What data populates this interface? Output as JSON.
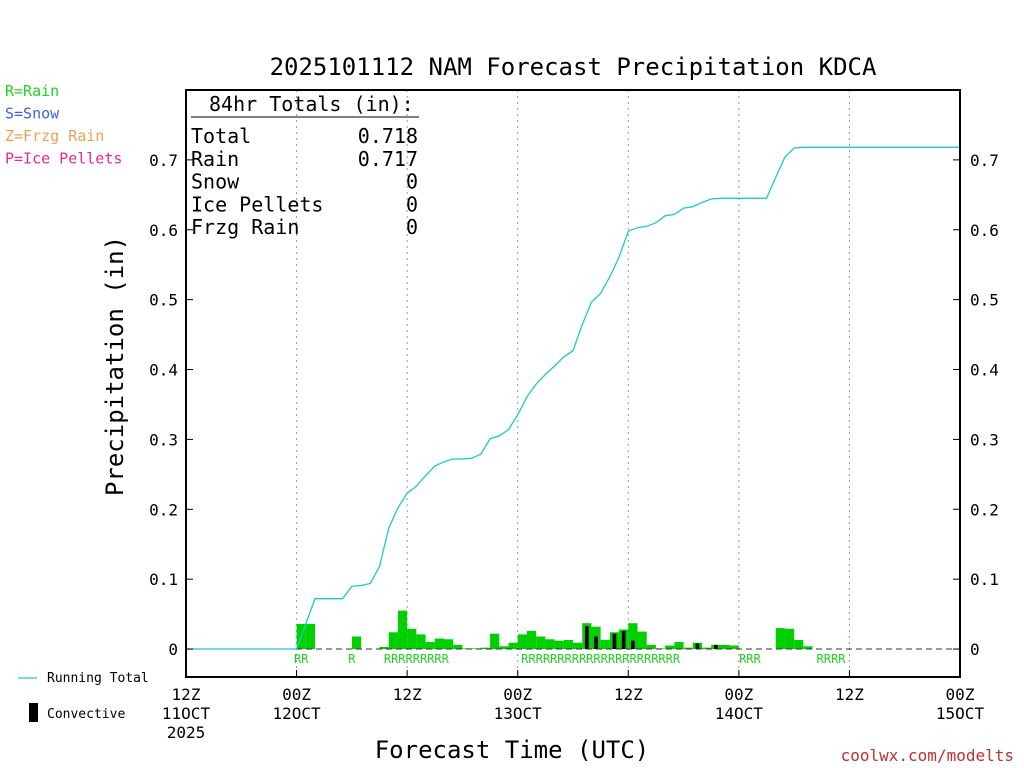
{
  "chart_data": {
    "type": "bar",
    "title": "2025101112 NAM Forecast Precipitation KDCA",
    "xlabel": "Forecast Time (UTC)",
    "ylabel": "Precipitation (in)",
    "ylim": [
      -0.04,
      0.8
    ],
    "xlim_hours": [
      0,
      84
    ],
    "yticks": [
      "0",
      "0.1",
      "0.2",
      "0.3",
      "0.4",
      "0.5",
      "0.6",
      "0.7"
    ],
    "ytick_values": [
      0,
      0.1,
      0.2,
      0.3,
      0.4,
      0.5,
      0.6,
      0.7
    ],
    "xticks": [
      {
        "hour": 0,
        "l1": "12Z",
        "l2": "11OCT",
        "l3": "2025"
      },
      {
        "hour": 12,
        "l1": "00Z",
        "l2": "12OCT"
      },
      {
        "hour": 24,
        "l1": "12Z",
        "l2": ""
      },
      {
        "hour": 36,
        "l1": "00Z",
        "l2": "13OCT"
      },
      {
        "hour": 48,
        "l1": "12Z",
        "l2": ""
      },
      {
        "hour": 60,
        "l1": "00Z",
        "l2": "14OCT"
      },
      {
        "hour": 72,
        "l1": "12Z",
        "l2": ""
      },
      {
        "hour": 84,
        "l1": "00Z",
        "l2": "15OCT"
      }
    ],
    "bar_hours": [
      12,
      13,
      15,
      16,
      17,
      18,
      19,
      20,
      21,
      22,
      23,
      24,
      25,
      26,
      27,
      28,
      29,
      30,
      31,
      32,
      33,
      34,
      35,
      36,
      37,
      38,
      39,
      40,
      41,
      42,
      43,
      44,
      45,
      46,
      47,
      48,
      49,
      50,
      51,
      52,
      53,
      54,
      55,
      56,
      57,
      58,
      59,
      60,
      63,
      64,
      65,
      66,
      67,
      68,
      69,
      70,
      71,
      72,
      73
    ],
    "series": [
      {
        "name": "Precipitation",
        "values": [
          0.036,
          0.036,
          0.0,
          0.0,
          0.0,
          0.018,
          0.0,
          0.0,
          0.003,
          0.024,
          0.055,
          0.029,
          0.021,
          0.01,
          0.015,
          0.014,
          0.006,
          0.001,
          0.001,
          0.002,
          0.022,
          0.004,
          0.009,
          0.021,
          0.026,
          0.018,
          0.014,
          0.012,
          0.013,
          0.009,
          0.037,
          0.032,
          0.013,
          0.024,
          0.028,
          0.037,
          0.025,
          0.006,
          0.001,
          0.005,
          0.01,
          0.002,
          0.009,
          0.002,
          0.006,
          0.006,
          0.005,
          0.0,
          0.0,
          0.03,
          0.029,
          0.013,
          0.004,
          0.0,
          0.0,
          0.0,
          0.0,
          0.0,
          0.0
        ]
      },
      {
        "name": "Convective",
        "values": [
          0,
          0,
          0,
          0,
          0,
          0,
          0,
          0,
          0,
          0,
          0,
          0,
          0,
          0,
          0,
          0,
          0,
          0,
          0,
          0,
          0,
          0,
          0,
          0,
          0,
          0,
          0,
          0,
          0,
          0,
          0.033,
          0.018,
          0,
          0.022,
          0.026,
          0.012,
          0,
          0,
          0,
          0,
          0,
          0,
          0.008,
          0,
          0.006,
          0,
          0,
          0,
          0,
          0,
          0,
          0,
          0,
          0,
          0,
          0,
          0,
          0,
          0
        ]
      }
    ],
    "running_total": {
      "x": [
        0,
        12,
        13,
        14,
        15,
        16,
        17,
        18,
        19,
        20,
        21,
        22,
        23,
        24,
        25,
        26,
        27,
        28,
        29,
        30,
        31,
        32,
        33,
        34,
        35,
        36,
        37,
        38,
        39,
        40,
        41,
        42,
        43,
        44,
        45,
        46,
        47,
        48,
        49,
        50,
        51,
        52,
        53,
        54,
        55,
        56,
        57,
        58,
        59,
        60,
        61,
        62,
        63,
        64,
        65,
        66,
        67,
        84
      ],
      "y": [
        0,
        0,
        0.036,
        0.072,
        0.072,
        0.072,
        0.072,
        0.09,
        0.091,
        0.094,
        0.118,
        0.173,
        0.202,
        0.223,
        0.233,
        0.248,
        0.262,
        0.268,
        0.272,
        0.272,
        0.273,
        0.279,
        0.301,
        0.305,
        0.314,
        0.335,
        0.361,
        0.379,
        0.393,
        0.405,
        0.418,
        0.427,
        0.464,
        0.496,
        0.509,
        0.533,
        0.561,
        0.598,
        0.603,
        0.605,
        0.61,
        0.62,
        0.622,
        0.631,
        0.633,
        0.639,
        0.644,
        0.645,
        0.645,
        0.645,
        0.645,
        0.645,
        0.645,
        0.675,
        0.704,
        0.717,
        0.718,
        0.718
      ]
    },
    "ptype_labels": [
      {
        "hour": 12.5,
        "text": "RR"
      },
      {
        "hour": 18,
        "text": "R"
      },
      {
        "hour": 25,
        "text": "RRRRRRRRR"
      },
      {
        "hour": 45,
        "text": "RRRRRRRRRRRRRRRRRRRRRR"
      },
      {
        "hour": 61.2,
        "text": "RRR"
      },
      {
        "hour": 70,
        "text": "RRRR"
      }
    ],
    "totals_box": {
      "heading": "84hr Totals (in):",
      "rows": [
        {
          "label": "Total",
          "value": "0.718"
        },
        {
          "label": "Rain",
          "value": "0.717"
        },
        {
          "label": "Snow",
          "value": "0"
        },
        {
          "label": "Ice Pellets",
          "value": "0"
        },
        {
          "label": "Frzg Rain",
          "value": "0"
        }
      ]
    },
    "ptype_legend": [
      {
        "text": "R=Rain",
        "color": "#1fd41f"
      },
      {
        "text": "S=Snow",
        "color": "#3c5ef0"
      },
      {
        "text": "Z=Frzg Rain",
        "color": "#f0a050"
      },
      {
        "text": "P=Ice Pellets",
        "color": "#e82890"
      }
    ],
    "legend": {
      "running_total": "Running Total",
      "convective": "Convective"
    },
    "credit": "coolwx.com/modelts",
    "colors": {
      "bar": "#00d000",
      "convective": "#000000",
      "line": "#20c8c8",
      "credit": "#c03030",
      "ptype": "#1fd41f"
    }
  }
}
